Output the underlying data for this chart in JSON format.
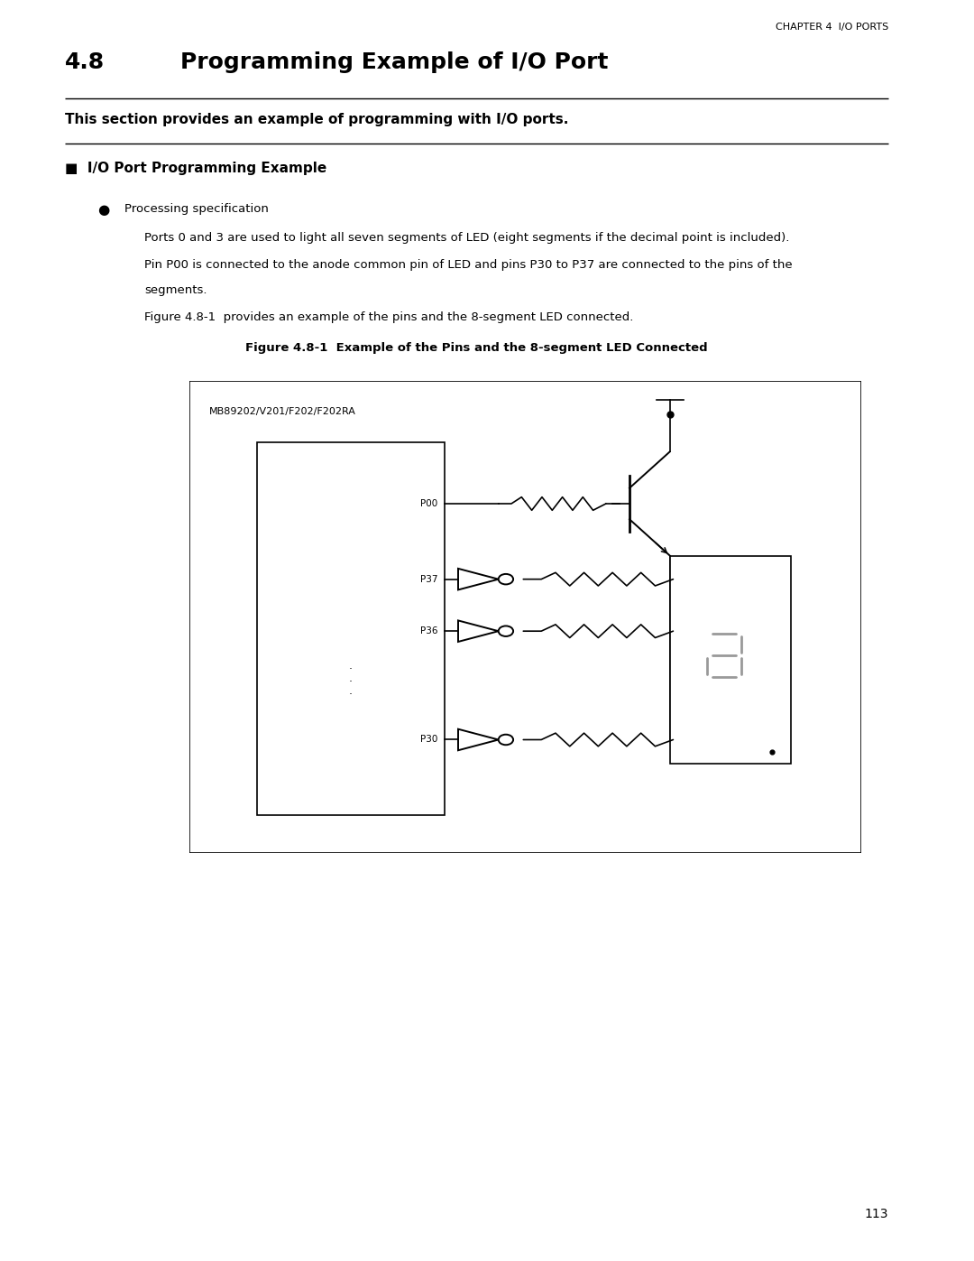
{
  "bg_color": "#ffffff",
  "page_width": 10.8,
  "page_height": 13.97,
  "header_text": "CHAPTER 4  I/O PORTS",
  "section_number": "4.8",
  "section_title": "Programming Example of I/O Port",
  "subtitle": "This section provides an example of programming with I/O ports.",
  "subsection_title": "■  I/O Port Programming Example",
  "bullet_text": "Processing specification",
  "para1": "Ports 0 and 3 are used to light all seven segments of LED (eight segments if the decimal point is included).",
  "para2_line1": "Pin P00 is connected to the anode common pin of LED and pins P30 to P37 are connected to the pins of the",
  "para2_line2": "segments.",
  "para3": "Figure 4.8-1  provides an example of the pins and the 8-segment LED connected.",
  "figure_caption": "Figure 4.8-1  Example of the Pins and the 8-segment LED Connected",
  "chip_label": "MB89202/V201/F202/F202RA",
  "page_number": "113"
}
